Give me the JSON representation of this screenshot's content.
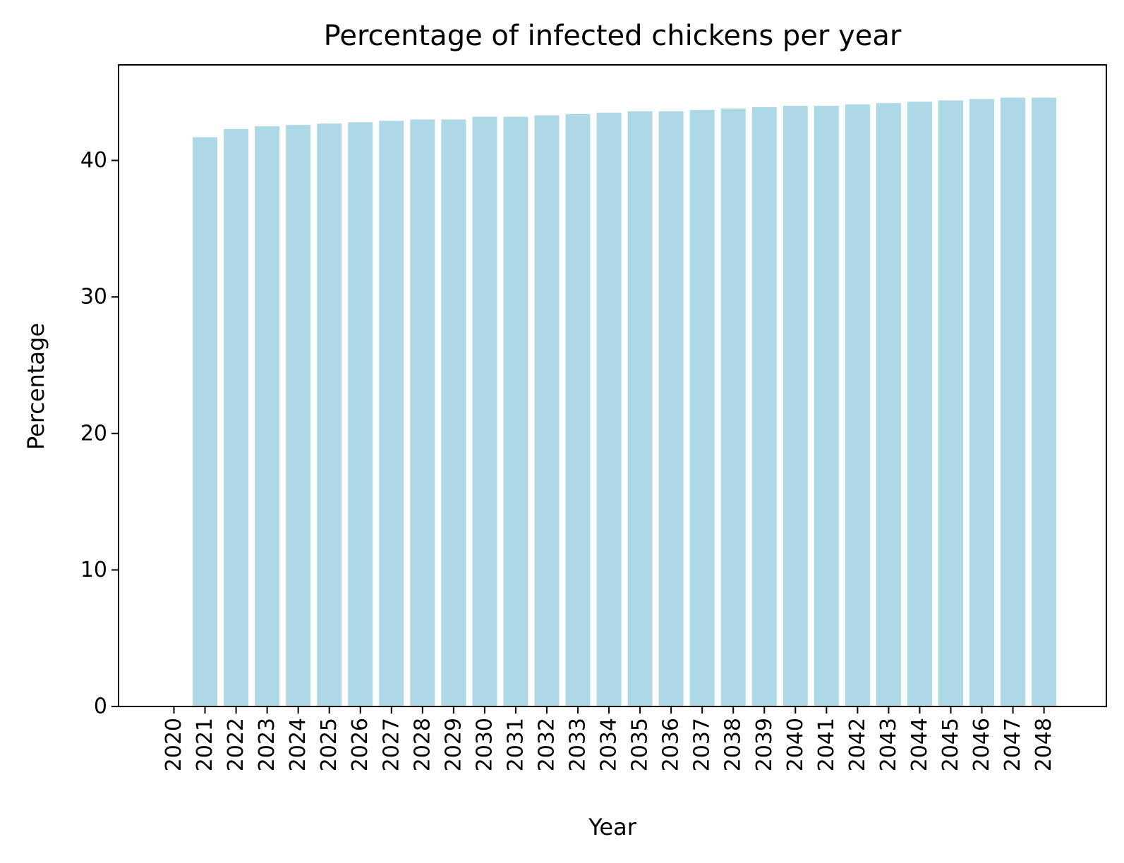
{
  "chart_data": {
    "type": "bar",
    "title": "Percentage of infected chickens per year",
    "xlabel": "Year",
    "ylabel": "Percentage",
    "categories": [
      "2020",
      "2021",
      "2022",
      "2023",
      "2024",
      "2025",
      "2026",
      "2027",
      "2028",
      "2029",
      "2030",
      "2031",
      "2032",
      "2033",
      "2034",
      "2035",
      "2036",
      "2037",
      "2038",
      "2039",
      "2040",
      "2041",
      "2042",
      "2043",
      "2044",
      "2045",
      "2046",
      "2047",
      "2048"
    ],
    "values": [
      0,
      41.7,
      42.3,
      42.5,
      42.6,
      42.7,
      42.8,
      42.9,
      43.0,
      43.0,
      43.2,
      43.2,
      43.3,
      43.4,
      43.5,
      43.6,
      43.6,
      43.7,
      43.8,
      43.9,
      44.0,
      44.0,
      44.1,
      44.2,
      44.3,
      44.4,
      44.5,
      44.6,
      44.6
    ],
    "ylim": [
      0,
      47
    ],
    "yticks": [
      0,
      10,
      20,
      30,
      40
    ],
    "bar_color": "#add8e6",
    "grid": false,
    "legend": "none"
  }
}
